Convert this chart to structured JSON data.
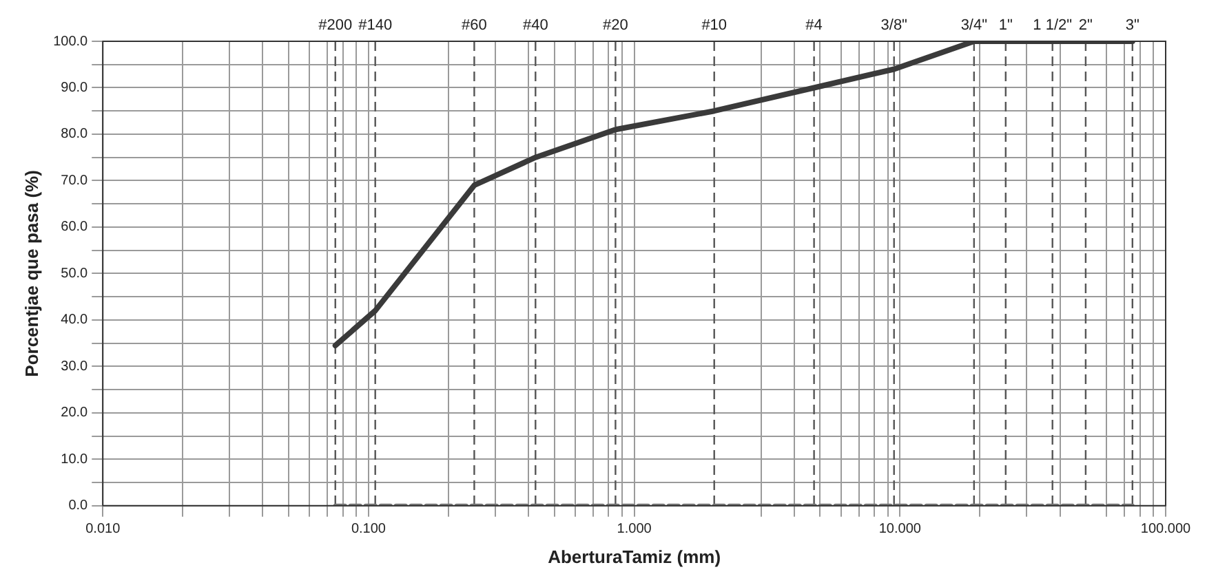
{
  "chart_data": {
    "type": "line",
    "xlabel": "AberturaTamiz (mm)",
    "ylabel": "Porcentjae que pasa (%)",
    "log": "x",
    "grid": true,
    "legend": false,
    "marker": "none",
    "xlim": [
      0.01,
      100
    ],
    "xticks": [
      {
        "value": 0.01,
        "label": "0.010"
      },
      {
        "value": 0.02,
        "label": null
      },
      {
        "value": 0.03,
        "label": null
      },
      {
        "value": 0.04,
        "label": null
      },
      {
        "value": 0.05,
        "label": null
      },
      {
        "value": 0.06,
        "label": null
      },
      {
        "value": 0.07,
        "label": null
      },
      {
        "value": 0.08,
        "label": null
      },
      {
        "value": 0.09,
        "label": null
      },
      {
        "value": 0.1,
        "label": "0.100"
      },
      {
        "value": 0.2,
        "label": null
      },
      {
        "value": 0.3,
        "label": null
      },
      {
        "value": 0.4,
        "label": null
      },
      {
        "value": 0.5,
        "label": null
      },
      {
        "value": 0.6,
        "label": null
      },
      {
        "value": 0.7,
        "label": null
      },
      {
        "value": 0.8,
        "label": null
      },
      {
        "value": 0.9,
        "label": null
      },
      {
        "value": 1,
        "label": "1.000"
      },
      {
        "value": 3,
        "label": null
      },
      {
        "value": 4,
        "label": null
      },
      {
        "value": 5,
        "label": null
      },
      {
        "value": 6,
        "label": null
      },
      {
        "value": 7,
        "label": null
      },
      {
        "value": 8,
        "label": null
      },
      {
        "value": 9,
        "label": null
      },
      {
        "value": 10,
        "label": "10.000"
      },
      {
        "value": 20,
        "label": null
      },
      {
        "value": 30,
        "label": null
      },
      {
        "value": 40,
        "label": null
      },
      {
        "value": 60,
        "label": null
      },
      {
        "value": 70,
        "label": null
      },
      {
        "value": 80,
        "label": null
      },
      {
        "value": 90,
        "label": null
      },
      {
        "value": 100,
        "label": "100.000"
      }
    ],
    "ylim": [
      0,
      100
    ],
    "yticks": [
      {
        "value": 0,
        "label": "0.0"
      },
      {
        "value": 5,
        "label": null
      },
      {
        "value": 10,
        "label": "10.0"
      },
      {
        "value": 15,
        "label": null
      },
      {
        "value": 20,
        "label": "20.0"
      },
      {
        "value": 25,
        "label": null
      },
      {
        "value": 30,
        "label": "30.0"
      },
      {
        "value": 35,
        "label": null
      },
      {
        "value": 40,
        "label": "40.0"
      },
      {
        "value": 45,
        "label": null
      },
      {
        "value": 50,
        "label": "50.0"
      },
      {
        "value": 55,
        "label": null
      },
      {
        "value": 60,
        "label": "60.0"
      },
      {
        "value": 65,
        "label": null
      },
      {
        "value": 70,
        "label": "70.0"
      },
      {
        "value": 75,
        "label": null
      },
      {
        "value": 80,
        "label": "80.0"
      },
      {
        "value": 85,
        "label": null
      },
      {
        "value": 90,
        "label": "90.0"
      },
      {
        "value": 95,
        "label": null
      },
      {
        "value": 100,
        "label": "100.0"
      }
    ],
    "series": [
      {
        "color": "#3a3a3a",
        "line_style": "solid",
        "x": [
          0.075,
          0.106,
          0.25,
          0.425,
          0.85,
          2.0,
          4.75,
          9.5,
          19,
          25,
          37.5,
          50,
          75
        ],
        "values": [
          34.5,
          42,
          69,
          75,
          81,
          85,
          90,
          94,
          100,
          100,
          100,
          100,
          100
        ]
      },
      {
        "color": "#7a7a7a",
        "line_style": "dashed",
        "x": [
          0.075,
          0.106,
          0.25,
          0.425,
          0.85,
          2.0,
          4.75,
          9.5,
          19,
          25,
          37.5,
          50,
          75
        ],
        "values": [
          0,
          0,
          0,
          0,
          0,
          0,
          0,
          0,
          0,
          0,
          0,
          0,
          0
        ]
      }
    ],
    "ref_lines": [
      {
        "axis": "x",
        "value": 0.075,
        "line_style": "dashed"
      },
      {
        "axis": "x",
        "value": 0.106,
        "line_style": "dashed"
      },
      {
        "axis": "x",
        "value": 0.25,
        "line_style": "dashed"
      },
      {
        "axis": "x",
        "value": 0.425,
        "line_style": "dashed"
      },
      {
        "axis": "x",
        "value": 0.85,
        "line_style": "dashed"
      },
      {
        "axis": "x",
        "value": 2.0,
        "line_style": "dashed"
      },
      {
        "axis": "x",
        "value": 4.75,
        "line_style": "dashed"
      },
      {
        "axis": "x",
        "value": 9.5,
        "line_style": "dashed"
      },
      {
        "axis": "x",
        "value": 19,
        "line_style": "dashed"
      },
      {
        "axis": "x",
        "value": 25,
        "line_style": "dashed"
      },
      {
        "axis": "x",
        "value": 37.5,
        "line_style": "dashed"
      },
      {
        "axis": "x",
        "value": 50,
        "line_style": "dashed"
      },
      {
        "axis": "x",
        "value": 75,
        "line_style": "dashed"
      }
    ],
    "annotations": [
      {
        "text": "#200",
        "x": 0.075,
        "y": 100
      },
      {
        "text": "#140",
        "x": 0.106,
        "y": 100
      },
      {
        "text": "#60",
        "x": 0.25,
        "y": 100
      },
      {
        "text": "#40",
        "x": 0.425,
        "y": 100
      },
      {
        "text": "#20",
        "x": 0.85,
        "y": 100
      },
      {
        "text": "#10",
        "x": 2.0,
        "y": 100
      },
      {
        "text": "#4",
        "x": 4.75,
        "y": 100
      },
      {
        "text": "3/8\"",
        "x": 9.5,
        "y": 100
      },
      {
        "text": "3/4\"",
        "x": 19,
        "y": 100
      },
      {
        "text": "1\"",
        "x": 25,
        "y": 100
      },
      {
        "text": "1 1/2\"",
        "x": 37.5,
        "y": 100
      },
      {
        "text": "2\"",
        "x": 50,
        "y": 100
      },
      {
        "text": "3\"",
        "x": 75,
        "y": 100
      }
    ]
  }
}
